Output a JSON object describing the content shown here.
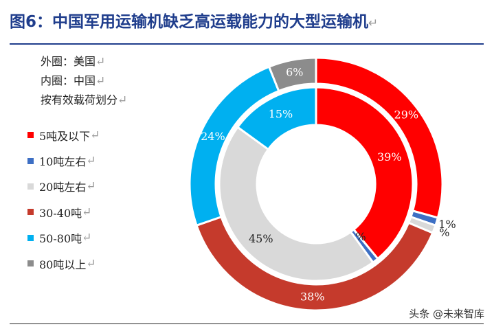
{
  "title": "图6：中国军用运输机缺乏高运载能力的大型运输机",
  "notes": {
    "outer": "外圈：美国",
    "inner": "内圈：中国",
    "basis": "按有效载荷划分"
  },
  "return_mark": "↵",
  "watermark": "头条 @未来智库",
  "chart_data": {
    "type": "pie",
    "style": "nested-donut",
    "categories": [
      "5吨及以下",
      "10吨左右",
      "20吨左右",
      "30-40吨",
      "50-80吨",
      "80吨以上"
    ],
    "colors": [
      "#ff0000",
      "#3d6fc4",
      "#d9d9d9",
      "#c53a2c",
      "#00b0f0",
      "#8c8c8c"
    ],
    "series": [
      {
        "ring": "outer",
        "values": [
          29,
          1,
          1,
          38,
          24,
          6
        ],
        "labels": [
          "29%",
          "1%",
          "%",
          "38%",
          "24%",
          "6%"
        ]
      },
      {
        "ring": "inner",
        "values": [
          39,
          1,
          45,
          0,
          15,
          0
        ],
        "labels": [
          "39%",
          "1%",
          "45%",
          "",
          "15%",
          ""
        ]
      }
    ],
    "legend_position": "left"
  }
}
